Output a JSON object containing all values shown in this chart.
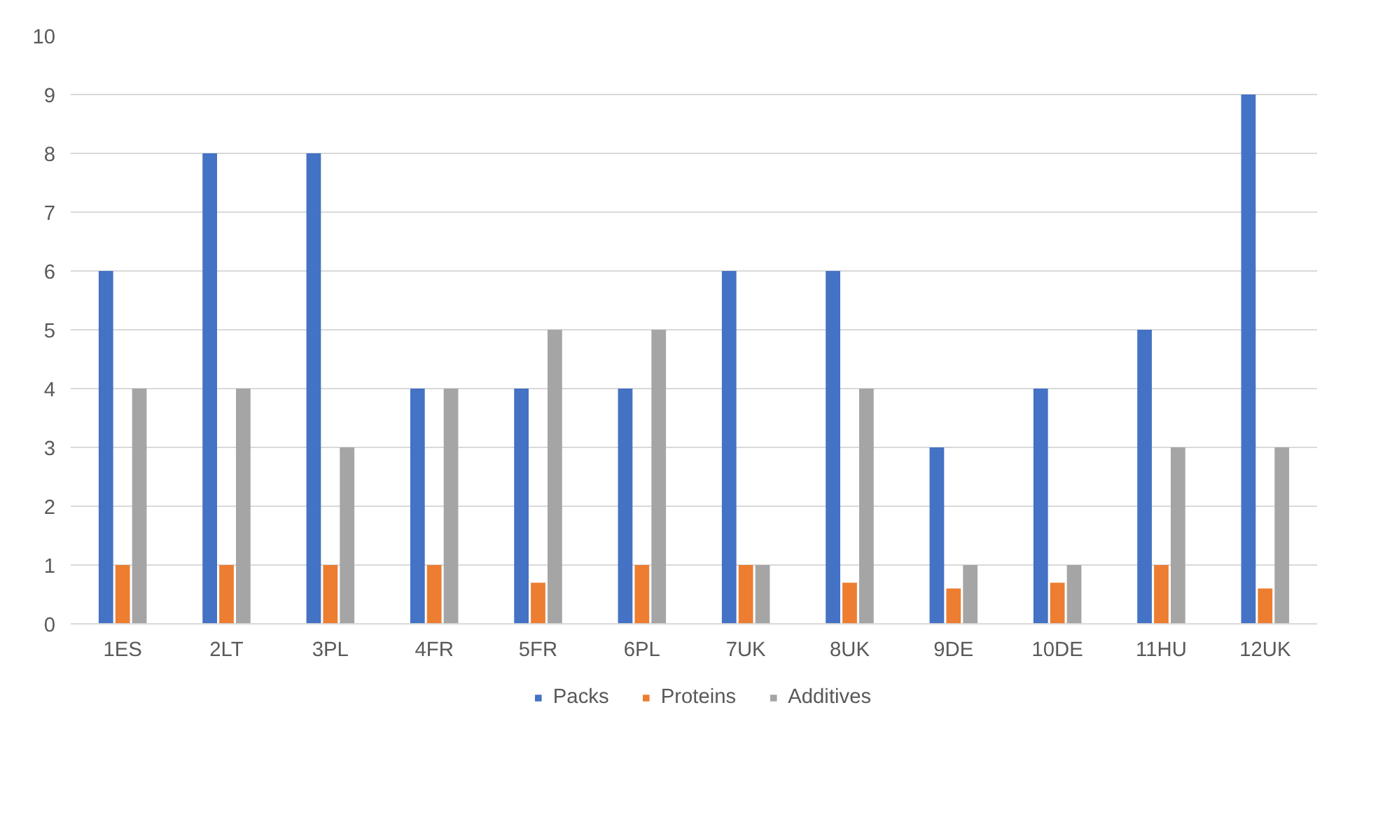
{
  "chart_data": {
    "type": "bar",
    "categories": [
      "1ES",
      "2LT",
      "3PL",
      "4FR",
      "5FR",
      "6PL",
      "7UK",
      "8UK",
      "9DE",
      "10DE",
      "11HU",
      "12UK"
    ],
    "series": [
      {
        "name": "Packs",
        "color": "#4472c4",
        "values": [
          6,
          8,
          8,
          4,
          4,
          4,
          6,
          6,
          3,
          4,
          5,
          9
        ]
      },
      {
        "name": "Proteins",
        "color": "#ed7d31",
        "values": [
          1,
          1,
          1,
          1,
          0.7,
          1,
          1,
          0.7,
          0.6,
          0.7,
          1,
          0.6
        ]
      },
      {
        "name": "Additives",
        "color": "#a5a5a5",
        "values": [
          4,
          4,
          3,
          4,
          5,
          5,
          1,
          4,
          1,
          1,
          3,
          3
        ]
      }
    ],
    "ylim": [
      0,
      10
    ],
    "yticks": [
      0,
      1,
      2,
      3,
      4,
      5,
      6,
      7,
      8,
      9,
      10
    ],
    "grid": "y",
    "legend": "bottom"
  }
}
